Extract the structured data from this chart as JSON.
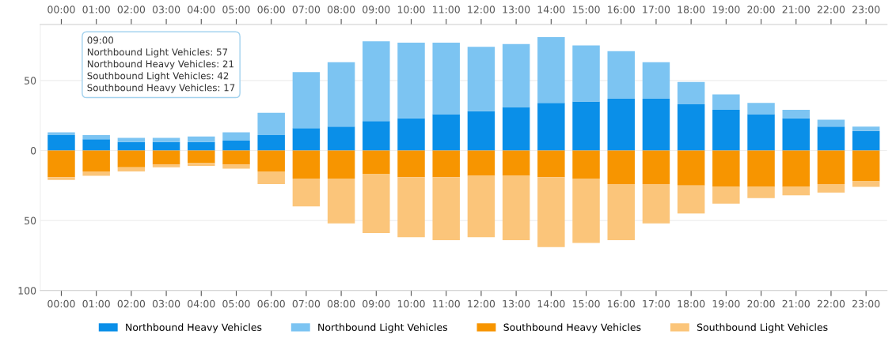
{
  "chart_data": {
    "type": "bar",
    "stacked": true,
    "categories": [
      "00:00",
      "01:00",
      "02:00",
      "03:00",
      "04:00",
      "05:00",
      "06:00",
      "07:00",
      "08:00",
      "09:00",
      "10:00",
      "11:00",
      "12:00",
      "13:00",
      "14:00",
      "15:00",
      "16:00",
      "17:00",
      "18:00",
      "19:00",
      "20:00",
      "21:00",
      "22:00",
      "23:00"
    ],
    "series": [
      {
        "name": "Northbound Heavy Vehicles",
        "color": "#0a8fe8",
        "values": [
          11,
          8,
          6,
          6,
          6,
          7,
          11,
          16,
          17,
          21,
          23,
          26,
          28,
          31,
          34,
          35,
          37,
          37,
          33,
          29,
          26,
          23,
          17,
          14
        ]
      },
      {
        "name": "Northbound Light Vehicles",
        "color": "#7cc4f2",
        "values": [
          2,
          3,
          3,
          3,
          4,
          6,
          16,
          40,
          46,
          57,
          54,
          51,
          46,
          45,
          47,
          40,
          34,
          26,
          16,
          11,
          8,
          6,
          5,
          3
        ]
      },
      {
        "name": "Southbound Heavy Vehicles",
        "color": "#f79500",
        "values": [
          -19,
          -15,
          -12,
          -10,
          -9,
          -10,
          -15,
          -20,
          -20,
          -17,
          -19,
          -19,
          -18,
          -18,
          -19,
          -20,
          -24,
          -24,
          -25,
          -26,
          -26,
          -26,
          -24,
          -22
        ]
      },
      {
        "name": "Southbound Light Vehicles",
        "color": "#fbc57a",
        "values": [
          -2,
          -3,
          -3,
          -2,
          -2,
          -3,
          -9,
          -20,
          -32,
          -42,
          -43,
          -45,
          -44,
          -46,
          -50,
          -46,
          -40,
          -28,
          -20,
          -12,
          -8,
          -6,
          -6,
          -4
        ]
      }
    ],
    "ylim": [
      -100,
      90
    ],
    "yticks": [
      {
        "value": 50,
        "label": "50"
      },
      0,
      {
        "value": -50,
        "label": "50"
      },
      {
        "value": -100,
        "label": "100"
      }
    ],
    "grid": "y",
    "legend": "bottom",
    "annotations": [
      "09:00",
      "Northbound Light Vehicles: 57",
      "Northbound Heavy Vehicles: 21",
      "Southbound Light Vehicles: 42",
      "Southbound Heavy Vehicles: 17"
    ]
  }
}
